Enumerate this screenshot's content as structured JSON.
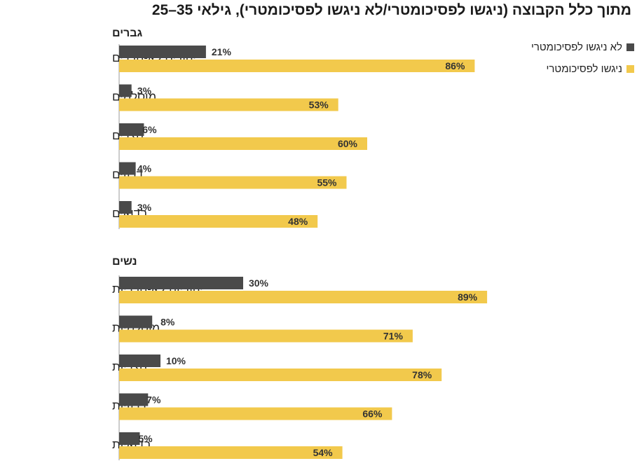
{
  "chart_data": {
    "type": "bar",
    "orientation": "horizontal",
    "title": "מתוך כלל הקבוצה (ניגשו לפסיכומטרי/לא ניגשו לפסיכומטרי), גילאי 35–25",
    "xlim": [
      0,
      100
    ],
    "series": [
      {
        "name": "לא ניגשו לפסיכומטרי",
        "color": "#4a4a4a"
      },
      {
        "name": "ניגשו לפסיכומטרי",
        "color": "#f2c94c"
      }
    ],
    "groups": [
      {
        "label": "גברים",
        "categories": [
          {
            "label": "יהודים לא-חרדים",
            "values": [
              21,
              86
            ]
          },
          {
            "label": "מוסלמים",
            "values": [
              3,
              53
            ]
          },
          {
            "label": "נוצרים",
            "values": [
              6,
              60
            ]
          },
          {
            "label": "דרוזים",
            "values": [
              4,
              55
            ]
          },
          {
            "label": "בדואים",
            "values": [
              3,
              48
            ]
          }
        ]
      },
      {
        "label": "נשים",
        "categories": [
          {
            "label": "יהודיות לא-חרדיות",
            "values": [
              30,
              89
            ]
          },
          {
            "label": "מוסלמיות",
            "values": [
              8,
              71
            ]
          },
          {
            "label": "נוצריות",
            "values": [
              10,
              78
            ]
          },
          {
            "label": "דרוזיות",
            "values": [
              7,
              66
            ]
          },
          {
            "label": "בדואיות",
            "values": [
              5,
              54
            ]
          }
        ]
      }
    ],
    "value_suffix": "%"
  }
}
